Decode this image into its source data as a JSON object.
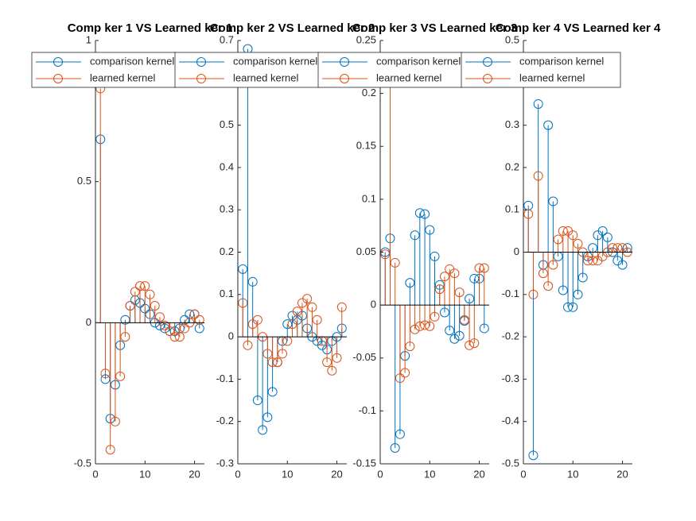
{
  "chart_data": [
    {
      "type": "stem",
      "title": "Comp ker 1  VS Learned ker 1",
      "x": [
        1,
        2,
        3,
        4,
        5,
        6,
        7,
        8,
        9,
        10,
        11,
        12,
        13,
        14,
        15,
        16,
        17,
        18,
        19,
        20,
        21
      ],
      "series": [
        {
          "name": "comparison kernel",
          "color": "#0072BD",
          "values": [
            0.65,
            -0.2,
            -0.34,
            -0.22,
            -0.08,
            0.01,
            0.06,
            0.08,
            0.07,
            0.05,
            0.03,
            0.0,
            -0.01,
            -0.02,
            -0.03,
            -0.03,
            -0.02,
            0.01,
            0.03,
            0.03,
            -0.02
          ]
        },
        {
          "name": "learned kernel",
          "color": "#D95319",
          "values": [
            0.83,
            -0.18,
            -0.45,
            -0.35,
            -0.19,
            -0.05,
            0.06,
            0.11,
            0.13,
            0.13,
            0.1,
            0.06,
            0.02,
            -0.01,
            -0.03,
            -0.05,
            -0.05,
            -0.02,
            0.0,
            0.03,
            0.01
          ]
        }
      ],
      "xlim": [
        0,
        22
      ],
      "xticks": [
        0,
        10,
        20
      ],
      "ylim": [
        -0.5,
        1
      ],
      "yticks": [
        -0.5,
        0,
        0.5,
        1
      ]
    },
    {
      "type": "stem",
      "title": "Comp ker 2  VS Learned ker 2",
      "x": [
        1,
        2,
        3,
        4,
        5,
        6,
        7,
        8,
        9,
        10,
        11,
        12,
        13,
        14,
        15,
        16,
        17,
        18,
        19,
        20,
        21
      ],
      "series": [
        {
          "name": "comparison kernel",
          "color": "#0072BD",
          "values": [
            0.16,
            0.68,
            0.13,
            -0.15,
            -0.22,
            -0.19,
            -0.13,
            -0.06,
            -0.01,
            0.03,
            0.05,
            0.04,
            0.05,
            0.02,
            0.0,
            -0.01,
            -0.02,
            -0.03,
            -0.01,
            0.0,
            0.02
          ]
        },
        {
          "name": "learned kernel",
          "color": "#D95319",
          "values": [
            0.08,
            -0.02,
            0.03,
            0.04,
            0.0,
            -0.04,
            -0.06,
            -0.06,
            -0.04,
            -0.01,
            0.03,
            0.06,
            0.08,
            0.09,
            0.07,
            0.04,
            -0.01,
            -0.06,
            -0.08,
            -0.05,
            0.07
          ]
        }
      ],
      "xlim": [
        0,
        22
      ],
      "xticks": [
        0,
        10,
        20
      ],
      "ylim": [
        -0.3,
        0.7
      ],
      "yticks": [
        -0.3,
        -0.2,
        -0.1,
        0,
        0.1,
        0.2,
        0.3,
        0.4,
        0.5,
        0.6,
        0.7
      ]
    },
    {
      "type": "stem",
      "title": "Comp ker 3  VS Learned ker 3",
      "x": [
        1,
        2,
        3,
        4,
        5,
        6,
        7,
        8,
        9,
        10,
        11,
        12,
        13,
        14,
        15,
        16,
        17,
        18,
        19,
        20,
        21
      ],
      "series": [
        {
          "name": "comparison kernel",
          "color": "#0072BD",
          "values": [
            0.05,
            0.063,
            -0.135,
            -0.122,
            -0.048,
            0.021,
            0.066,
            0.087,
            0.086,
            0.071,
            0.046,
            0.019,
            -0.007,
            -0.024,
            -0.032,
            -0.029,
            -0.015,
            0.006,
            0.025,
            0.025,
            -0.022
          ]
        },
        {
          "name": "learned kernel",
          "color": "#D95319",
          "values": [
            0.048,
            0.22,
            0.04,
            -0.069,
            -0.064,
            -0.039,
            -0.023,
            -0.02,
            -0.019,
            -0.02,
            -0.011,
            0.015,
            0.027,
            0.034,
            0.03,
            0.012,
            -0.014,
            -0.038,
            -0.036,
            0.035,
            0.035
          ]
        }
      ],
      "xlim": [
        0,
        22
      ],
      "xticks": [
        0,
        10,
        20
      ],
      "ylim": [
        -0.15,
        0.25
      ],
      "yticks": [
        -0.15,
        -0.1,
        -0.05,
        0,
        0.05,
        0.1,
        0.15,
        0.2,
        0.25
      ]
    },
    {
      "type": "stem",
      "title": "Comp ker 4  VS Learned ker 4",
      "x": [
        1,
        2,
        3,
        4,
        5,
        6,
        7,
        8,
        9,
        10,
        11,
        12,
        13,
        14,
        15,
        16,
        17,
        18,
        19,
        20,
        21
      ],
      "series": [
        {
          "name": "comparison kernel",
          "color": "#0072BD",
          "values": [
            0.11,
            -0.48,
            0.35,
            -0.03,
            0.3,
            0.12,
            -0.01,
            -0.09,
            -0.13,
            -0.13,
            -0.1,
            -0.06,
            -0.01,
            0.01,
            0.04,
            0.05,
            0.035,
            0.0,
            -0.02,
            -0.03,
            0.01
          ]
        },
        {
          "name": "learned kernel",
          "color": "#D95319",
          "values": [
            0.09,
            -0.1,
            0.18,
            -0.05,
            -0.08,
            -0.03,
            0.03,
            0.05,
            0.05,
            0.04,
            0.02,
            0.0,
            -0.02,
            -0.02,
            -0.02,
            -0.01,
            0.0,
            0.01,
            0.01,
            0.01,
            0.0
          ]
        }
      ],
      "xlim": [
        0,
        22
      ],
      "xticks": [
        0,
        10,
        20
      ],
      "ylim": [
        -0.5,
        0.5
      ],
      "yticks": [
        -0.5,
        -0.4,
        -0.3,
        -0.2,
        -0.1,
        0,
        0.1,
        0.2,
        0.3,
        0.4,
        0.5
      ]
    }
  ]
}
